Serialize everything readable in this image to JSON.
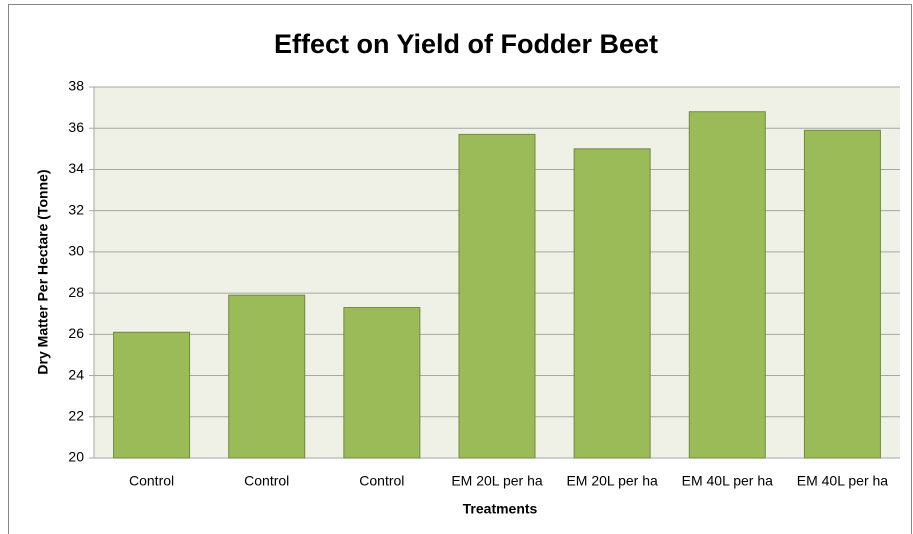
{
  "chart_data": {
    "type": "bar",
    "title": "Effect on Yield of Fodder Beet",
    "x_label": "Treatments",
    "y_label": "Dry Matter Per Hectare (Tonne)",
    "categories": [
      "Control",
      "Control",
      "Control",
      "EM 20L per ha",
      "EM 20L per ha",
      "EM 40L per ha",
      "EM 40L per ha"
    ],
    "values": [
      26.1,
      27.9,
      27.3,
      35.7,
      35.0,
      36.8,
      35.9
    ],
    "color": "#9bbb59",
    "ylim": [
      20,
      38
    ],
    "yticks": [
      20,
      22,
      24,
      26,
      28,
      30,
      32,
      34,
      36,
      38
    ],
    "grid": true
  }
}
